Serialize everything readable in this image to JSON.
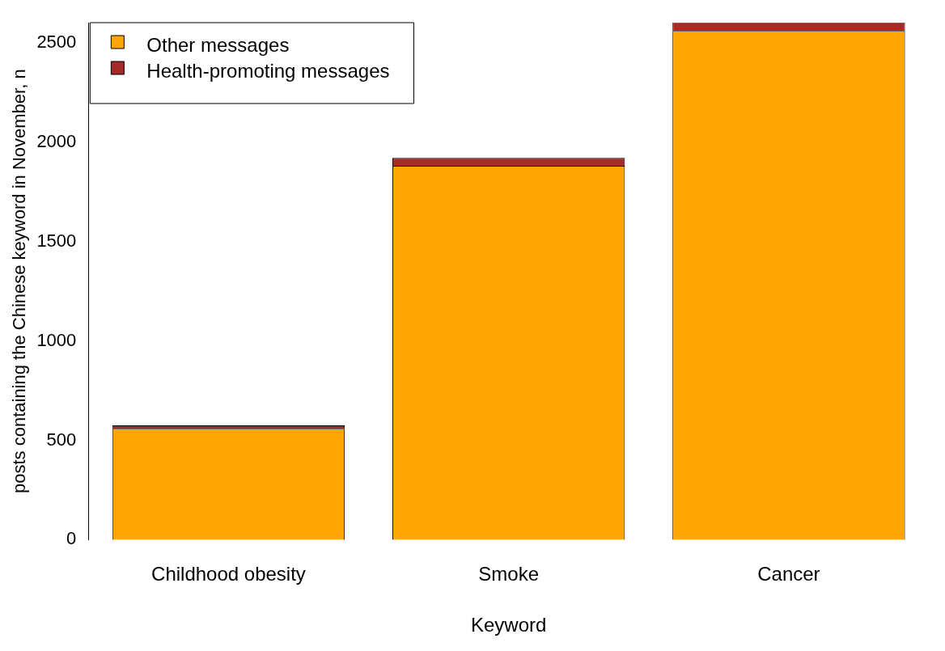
{
  "chart_data": {
    "type": "bar",
    "xlabel": "Keyword",
    "ylabel": "posts containing the Chinese keyword in November, n",
    "categories": [
      "Childhood obesity",
      "Smoke",
      "Cancer"
    ],
    "stacked": true,
    "series": [
      {
        "name": "Other messages",
        "color": "#ffa500",
        "values": [
          558,
          1880,
          2558
        ]
      },
      {
        "name": "Health-promoting messages",
        "color": "#a52a2a",
        "values": [
          17,
          40,
          45
        ]
      }
    ],
    "ylim": [
      0,
      2600
    ],
    "yticks": [
      0,
      500,
      1000,
      1500,
      2000,
      2500
    ],
    "grid": false,
    "legend": "top left"
  }
}
